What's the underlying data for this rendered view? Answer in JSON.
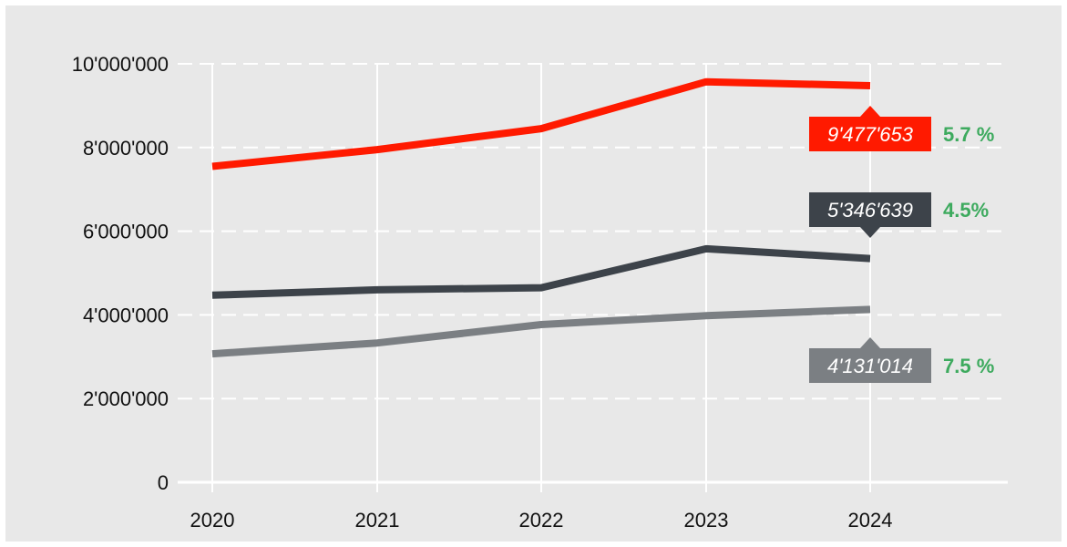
{
  "chart_data": {
    "type": "line",
    "x": [
      "2020",
      "2021",
      "2022",
      "2023",
      "2024"
    ],
    "ylim": [
      0,
      10000000
    ],
    "y_ticks": [
      0,
      2000000,
      4000000,
      6000000,
      8000000,
      10000000
    ],
    "y_tick_labels": [
      "0",
      "2'000'000",
      "4'000'000",
      "6'000'000",
      "8'000'000",
      "10'000'000"
    ],
    "grid": {
      "horizontal": "dashed",
      "vertical": "solid"
    },
    "title": "",
    "xlabel": "",
    "ylabel": "",
    "series": [
      {
        "color": "#ff1a00",
        "values": [
          7550000,
          7950000,
          8450000,
          9570000,
          9477653
        ],
        "end_label": "9'477'653",
        "change": "5.7 %"
      },
      {
        "color": "#3d434a",
        "values": [
          4470000,
          4600000,
          4650000,
          5580000,
          5346639
        ],
        "end_label": "5'346'639",
        "change": "4.5%"
      },
      {
        "color": "#7b7f83",
        "values": [
          3070000,
          3330000,
          3770000,
          3980000,
          4131014
        ],
        "end_label": "4'131'014",
        "change": "7.5 %"
      }
    ],
    "change_color": "#3daa5e",
    "background": "#e8e8e8",
    "grid_color": "#ffffff"
  }
}
